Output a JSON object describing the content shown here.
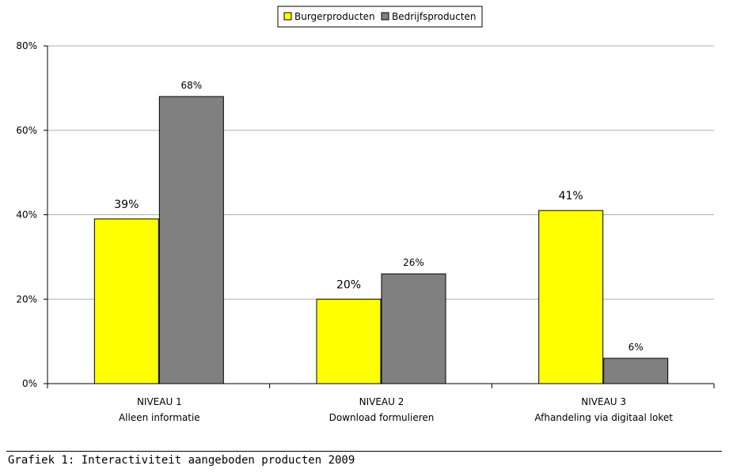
{
  "chart_data": {
    "type": "bar",
    "categories": [
      {
        "line1": "NIVEAU 1",
        "line2": "Alleen informatie"
      },
      {
        "line1": "NIVEAU 2",
        "line2": "Download formulieren"
      },
      {
        "line1": "NIVEAU 3",
        "line2": "Afhandeling via digitaal loket"
      }
    ],
    "series": [
      {
        "name": "Burgerproducten",
        "values": [
          39,
          20,
          41
        ],
        "labels": [
          "39%",
          "20%",
          "41%"
        ],
        "color": "#ffff00"
      },
      {
        "name": "Bedrijfsproducten",
        "values": [
          68,
          26,
          6
        ],
        "labels": [
          "68%",
          "26%",
          "6%"
        ],
        "color": "#808080"
      }
    ],
    "ylim": [
      0,
      80
    ],
    "yticks": [
      0,
      20,
      40,
      60,
      80
    ],
    "ytick_labels": [
      "0%",
      "20%",
      "40%",
      "60%",
      "80%"
    ],
    "grid": true,
    "legend_position": "top-center"
  },
  "caption": "Grafiek 1: Interactiviteit aangeboden producten 2009"
}
